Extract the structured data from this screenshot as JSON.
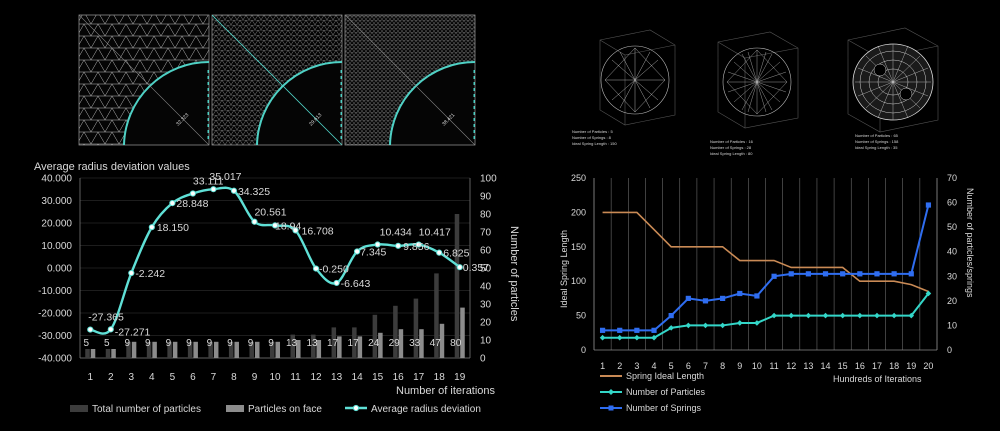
{
  "panels": {
    "mesh_labels": [
      "32.323",
      "29.613",
      "38.421"
    ]
  },
  "sphere_captions": [
    {
      "lines": [
        "Number of Particles : 5",
        "Number of Springs : 8",
        "Ideal Spring Length : 150"
      ]
    },
    {
      "lines": [
        "Number of Particles : 16",
        "Number of Springs : 28",
        "Ideal Spring Length : 80"
      ]
    },
    {
      "lines": [
        "Number of Particles : 65",
        "Number of Springs : 158",
        "Ideal Spring Length : 35"
      ]
    }
  ],
  "chart_data": [
    {
      "type": "bar",
      "title": "Average radius deviation values",
      "xlabel": "Number of iterations",
      "ylabel": "Number of particles",
      "categories": [
        "1",
        "2",
        "3",
        "4",
        "5",
        "6",
        "7",
        "8",
        "9",
        "10",
        "11",
        "12",
        "13",
        "14",
        "15",
        "16",
        "17",
        "18",
        "19"
      ],
      "y_left_ticks": [
        "40.000",
        "30.000",
        "20.000",
        "10.000",
        "0.000",
        "-10.000",
        "-20.000",
        "-30.000",
        "-40.000"
      ],
      "y_left_range": [
        -40,
        40
      ],
      "y_right_ticks": [
        "0",
        "10",
        "20",
        "30",
        "40",
        "50",
        "60",
        "70",
        "80",
        "90",
        "100"
      ],
      "y_right_range": [
        0,
        100
      ],
      "series": [
        {
          "name": "Total number of particles",
          "axis": "right",
          "color": "#3c3c3c",
          "values": [
            5,
            5,
            9,
            9,
            9,
            9,
            9,
            9,
            9,
            9,
            13,
            13,
            17,
            17,
            24,
            29,
            33,
            47,
            80
          ]
        },
        {
          "name": "Particles on face",
          "axis": "right",
          "color": "#8c8c8c",
          "values": [
            5,
            5,
            9,
            9,
            9,
            9,
            9,
            9,
            9,
            9,
            10,
            10,
            12,
            12,
            14,
            16,
            16,
            19,
            28
          ]
        },
        {
          "name": "Average radius deviation",
          "axis": "left",
          "color": "#5fe0d6",
          "values": [
            -27.365,
            -27.271,
            -2.242,
            18.15,
            28.848,
            33.111,
            35.017,
            34.325,
            20.561,
            18.94,
            16.708,
            -0.25,
            -6.643,
            7.345,
            10.434,
            9.856,
            10.417,
            6.825,
            0.357
          ],
          "labels": [
            "-27.365",
            "-27.271",
            "-2.242",
            "18.150",
            "28.848",
            "33.111",
            "35.017",
            "34.325",
            "20.561",
            "18.94",
            "16.708",
            "-0.250",
            "-6.643",
            "7.345",
            "10.434",
            "9.856",
            "10.417",
            "6.825",
            "0.357"
          ]
        }
      ],
      "bar_labels": [
        "5",
        "5",
        "9",
        "9",
        "9",
        "9",
        "9",
        "9",
        "9",
        "9",
        "13",
        "13",
        "17",
        "17",
        "24",
        "29",
        "33",
        "47",
        "80"
      ],
      "legend": "bottom",
      "grid": true
    },
    {
      "type": "line",
      "xlabel": "Hundreds of Iterations",
      "ylabel": "Ideal Spring Length",
      "y2label": "Number of particles/springs",
      "categories": [
        "1",
        "2",
        "3",
        "4",
        "5",
        "6",
        "7",
        "8",
        "9",
        "10",
        "11",
        "12",
        "13",
        "14",
        "15",
        "16",
        "17",
        "18",
        "19",
        "20"
      ],
      "y_left_ticks": [
        "250",
        "200",
        "150",
        "100",
        "50",
        "0"
      ],
      "y_left_range": [
        0,
        250
      ],
      "y_right_ticks": [
        "70",
        "60",
        "50",
        "40",
        "30",
        "20",
        "10",
        "0"
      ],
      "y_right_range": [
        0,
        70
      ],
      "series": [
        {
          "name": "Spring Ideal Length",
          "axis": "left",
          "color": "#c98a55",
          "values": [
            200,
            200,
            200,
            175,
            150,
            150,
            150,
            150,
            130,
            130,
            130,
            120,
            120,
            120,
            120,
            100,
            100,
            100,
            95,
            85
          ]
        },
        {
          "name": "Number of Particles",
          "axis": "right",
          "color": "#33d6c8",
          "values": [
            5,
            5,
            5,
            5,
            9,
            10,
            10,
            10,
            11,
            11,
            14,
            14,
            14,
            14,
            14,
            14,
            14,
            14,
            14,
            23
          ]
        },
        {
          "name": "Number of Springs",
          "axis": "right",
          "color": "#2f6df0",
          "values": [
            8,
            8,
            8,
            8,
            14,
            21,
            20,
            21,
            23,
            22,
            30,
            31,
            31,
            31,
            31,
            31,
            31,
            31,
            31,
            59
          ]
        }
      ],
      "legend": "bottom-left",
      "grid": true
    }
  ]
}
